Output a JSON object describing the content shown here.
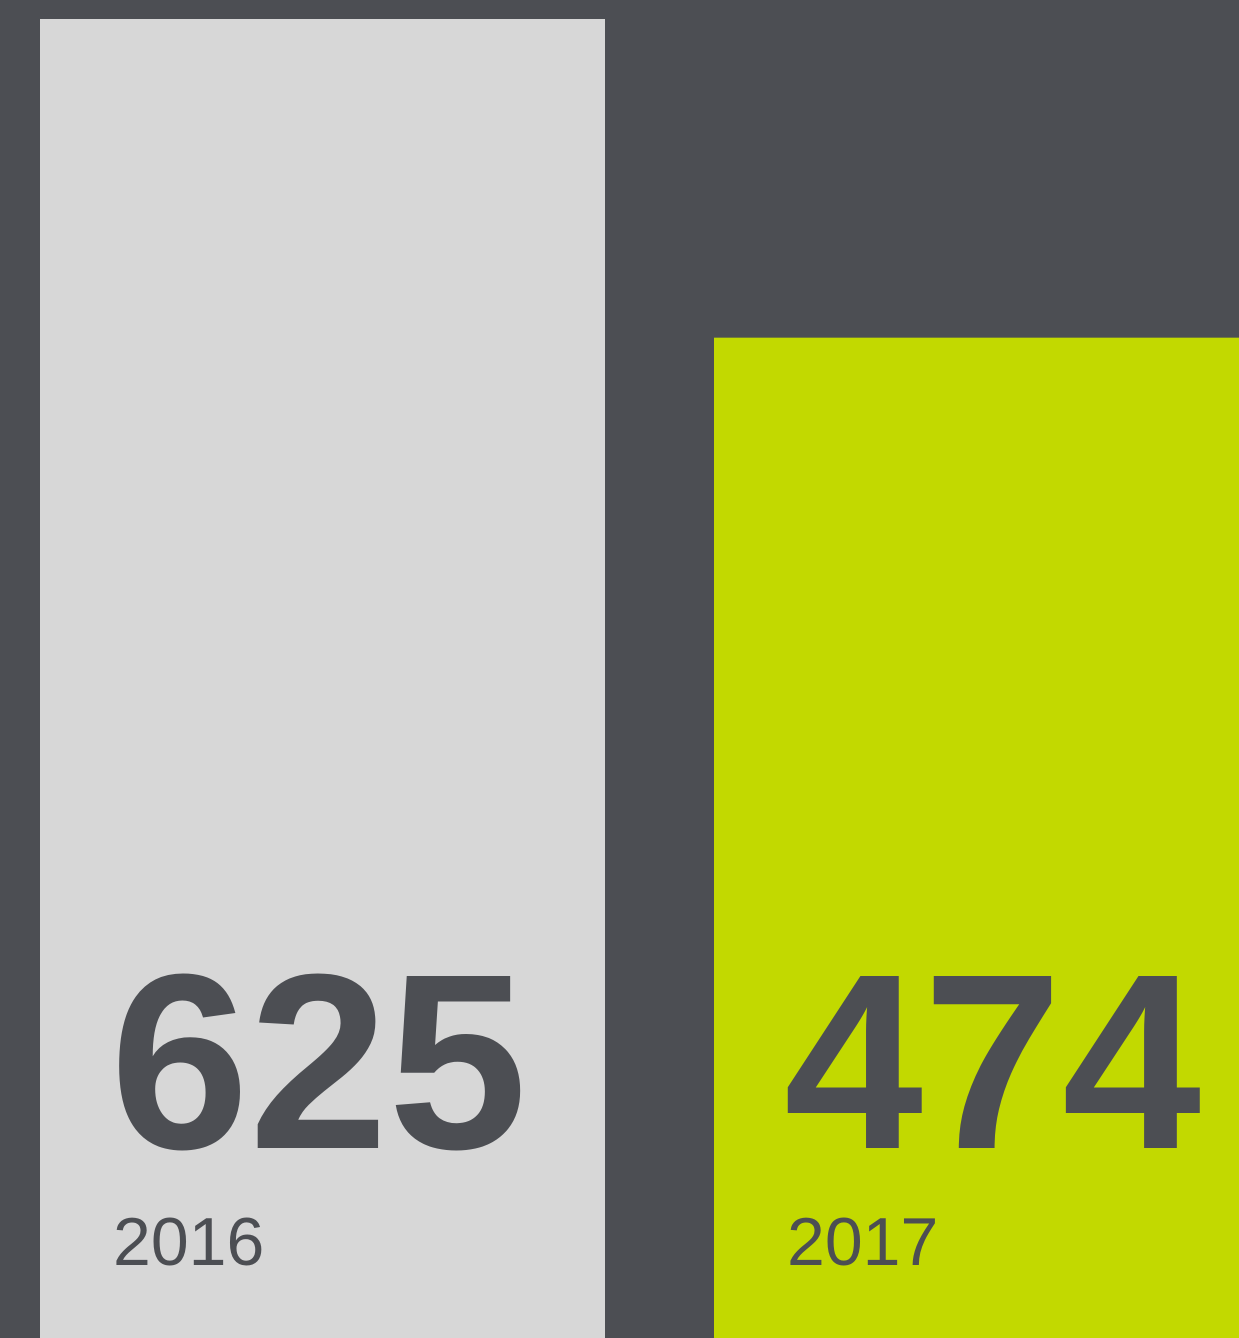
{
  "chart_data": {
    "type": "bar",
    "categories": [
      "2016",
      "2017"
    ],
    "values": [
      625,
      474
    ],
    "colors": [
      "#d7d7d7",
      "#c2d900"
    ]
  }
}
